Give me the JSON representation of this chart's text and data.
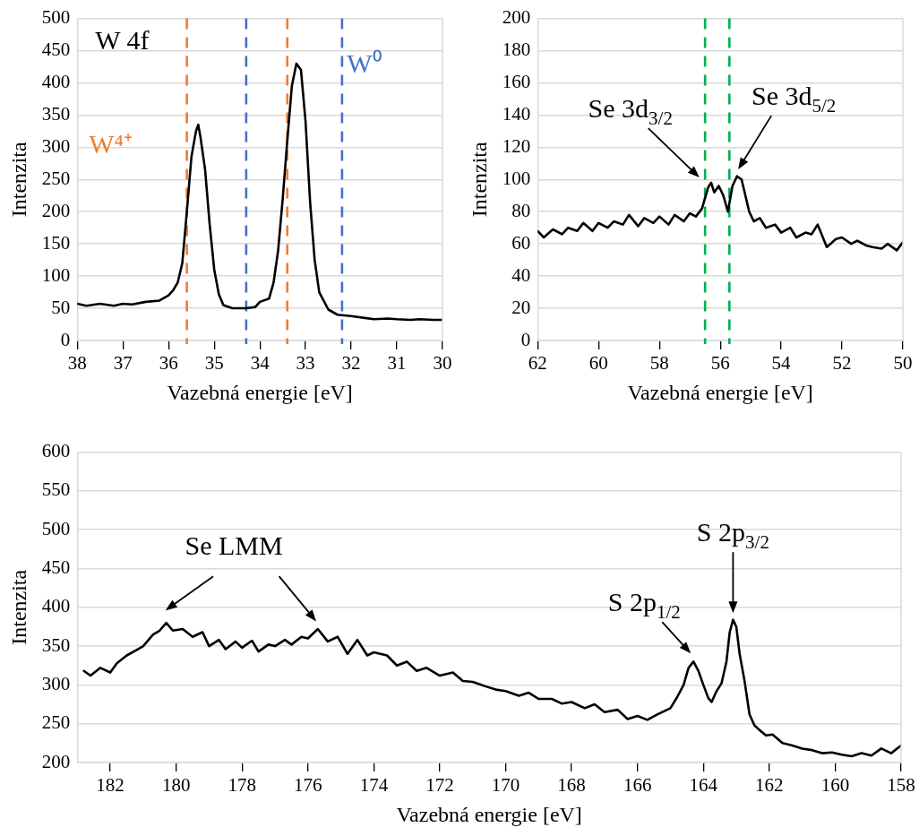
{
  "chart_data": [
    {
      "type": "line",
      "xlabel": "Vazebná energie [eV]",
      "ylabel": "Intenzita",
      "xlim": [
        38,
        30
      ],
      "ylim": [
        0,
        500
      ],
      "xticks": [
        38,
        37,
        36,
        35,
        34,
        33,
        32,
        31,
        30
      ],
      "yticks": [
        0,
        50,
        100,
        150,
        200,
        250,
        300,
        350,
        400,
        450,
        500
      ],
      "grid": "y",
      "legend": false,
      "marker": "none",
      "line_style": "solid",
      "annotations": [
        "W 4f"
      ],
      "ref_lines": [
        {
          "axis": "x",
          "value": 35.6,
          "label": "W⁴⁺",
          "color": "#ed7d31",
          "line_style": "dashed"
        },
        {
          "axis": "x",
          "value": 34.3,
          "label": null,
          "color": "#4472c4",
          "line_style": "dashed"
        },
        {
          "axis": "x",
          "value": 33.4,
          "label": null,
          "color": "#ed7d31",
          "line_style": "dashed"
        },
        {
          "axis": "x",
          "value": 32.2,
          "label": "W⁰",
          "color": "#4472c4",
          "line_style": "dashed"
        }
      ],
      "x": [
        38,
        37.8,
        37.5,
        37.2,
        37,
        36.8,
        36.5,
        36.2,
        36,
        35.9,
        35.8,
        35.7,
        35.6,
        35.5,
        35.4,
        35.35,
        35.3,
        35.2,
        35.1,
        35.0,
        34.9,
        34.8,
        34.6,
        34.3,
        34.1,
        34.0,
        33.8,
        33.7,
        33.6,
        33.5,
        33.4,
        33.3,
        33.2,
        33.1,
        33.0,
        32.9,
        32.8,
        32.7,
        32.5,
        32.3,
        32,
        31.7,
        31.5,
        31.2,
        31,
        30.7,
        30.5,
        30.2,
        30
      ],
      "series": [
        {
          "color": "#000000",
          "values": [
            57,
            54,
            57,
            54,
            57,
            56,
            60,
            62,
            70,
            78,
            90,
            120,
            200,
            285,
            325,
            335,
            315,
            265,
            180,
            110,
            72,
            55,
            50,
            50,
            52,
            60,
            65,
            90,
            140,
            220,
            310,
            395,
            430,
            420,
            340,
            215,
            125,
            75,
            48,
            40,
            38,
            35,
            33,
            34,
            33,
            32,
            33,
            32,
            32
          ]
        }
      ]
    },
    {
      "type": "line",
      "xlabel": "Vazebná energie [eV]",
      "ylabel": "Intenzita",
      "xlim": [
        62,
        50
      ],
      "ylim": [
        0,
        200
      ],
      "xticks": [
        62,
        60,
        58,
        56,
        54,
        52,
        50
      ],
      "yticks": [
        0,
        20,
        40,
        60,
        80,
        100,
        120,
        140,
        160,
        180,
        200
      ],
      "grid": "y",
      "legend": false,
      "marker": "none",
      "line_style": "solid",
      "annotations": [
        {
          "text": "Se 3d$_{3/2}$",
          "x": 56.6,
          "y": 99
        },
        {
          "text": "Se 3d$_{5/2}$",
          "x": 55.5,
          "y": 104
        }
      ],
      "ref_lines": [
        {
          "axis": "x",
          "value": 56.5,
          "label": null,
          "color": "#00b050",
          "line_style": "dashed"
        },
        {
          "axis": "x",
          "value": 55.7,
          "label": null,
          "color": "#00b050",
          "line_style": "dashed"
        }
      ],
      "x": [
        62,
        61.8,
        61.5,
        61.2,
        61,
        60.7,
        60.5,
        60.2,
        60,
        59.7,
        59.5,
        59.2,
        59,
        58.7,
        58.5,
        58.2,
        58,
        57.7,
        57.5,
        57.2,
        57,
        56.8,
        56.6,
        56.4,
        56.3,
        56.2,
        56.05,
        55.9,
        55.75,
        55.6,
        55.45,
        55.3,
        55.15,
        55.05,
        54.9,
        54.7,
        54.5,
        54.2,
        54,
        53.7,
        53.5,
        53.2,
        53,
        52.8,
        52.5,
        52.2,
        52,
        51.7,
        51.5,
        51.2,
        51,
        50.7,
        50.5,
        50.2,
        50
      ],
      "series": [
        {
          "color": "#000000",
          "values": [
            68,
            64,
            69,
            66,
            70,
            68,
            73,
            68,
            73,
            70,
            74,
            72,
            78,
            71,
            76,
            73,
            77,
            72,
            78,
            74,
            79,
            77,
            82,
            95,
            98,
            92,
            96,
            90,
            80,
            96,
            102,
            100,
            88,
            80,
            74,
            76,
            70,
            72,
            67,
            70,
            64,
            67,
            66,
            72,
            58,
            63,
            64,
            60,
            62,
            59,
            58,
            57,
            60,
            56,
            61
          ]
        }
      ]
    },
    {
      "type": "line",
      "xlabel": "Vazebná energie [eV]",
      "ylabel": "Intenzita",
      "xlim": [
        183,
        158
      ],
      "ylim": [
        200,
        600
      ],
      "xticks": [
        182,
        180,
        178,
        176,
        174,
        172,
        170,
        168,
        166,
        164,
        162,
        160,
        158
      ],
      "yticks": [
        200,
        250,
        300,
        350,
        400,
        450,
        500,
        550,
        600
      ],
      "grid": "y",
      "legend": false,
      "marker": "none",
      "line_style": "solid",
      "annotations": [
        "Se LMM",
        {
          "text": "S 2p$_{1/2}$",
          "x": 164.3,
          "y": 336
        },
        {
          "text": "S 2p$_{3/2}$",
          "x": 163.1,
          "y": 388
        }
      ],
      "x": [
        182.8,
        182.6,
        182.3,
        182,
        181.8,
        181.5,
        181.2,
        181,
        180.7,
        180.5,
        180.3,
        180.1,
        179.8,
        179.5,
        179.2,
        179,
        178.7,
        178.5,
        178.2,
        178,
        177.7,
        177.5,
        177.2,
        177,
        176.7,
        176.5,
        176.2,
        176,
        175.7,
        175.4,
        175.1,
        174.8,
        174.5,
        174.2,
        174,
        173.6,
        173.3,
        173,
        172.7,
        172.4,
        172,
        171.6,
        171.3,
        171,
        170.6,
        170.3,
        170,
        169.6,
        169.3,
        169,
        168.6,
        168.3,
        168,
        167.6,
        167.3,
        167,
        166.6,
        166.3,
        166,
        165.7,
        165.4,
        165.2,
        165,
        164.8,
        164.6,
        164.45,
        164.3,
        164.15,
        164,
        163.85,
        163.75,
        163.6,
        163.45,
        163.3,
        163.2,
        163.1,
        163.0,
        162.9,
        162.75,
        162.6,
        162.45,
        162.3,
        162.1,
        161.9,
        161.6,
        161.3,
        161,
        160.7,
        160.4,
        160.1,
        159.8,
        159.5,
        159.2,
        158.9,
        158.6,
        158.3,
        158
      ],
      "series": [
        {
          "color": "#000000",
          "values": [
            318,
            312,
            322,
            316,
            328,
            338,
            345,
            350,
            365,
            370,
            380,
            370,
            372,
            362,
            368,
            350,
            358,
            346,
            356,
            348,
            357,
            343,
            352,
            350,
            358,
            352,
            362,
            360,
            372,
            356,
            362,
            340,
            358,
            338,
            342,
            338,
            325,
            330,
            318,
            322,
            312,
            316,
            305,
            304,
            298,
            294,
            292,
            286,
            290,
            282,
            282,
            276,
            278,
            270,
            275,
            265,
            268,
            256,
            260,
            255,
            262,
            266,
            270,
            284,
            300,
            322,
            330,
            318,
            300,
            283,
            278,
            292,
            302,
            330,
            368,
            384,
            375,
            340,
            305,
            262,
            248,
            242,
            235,
            236,
            225,
            222,
            218,
            216,
            212,
            213,
            210,
            208,
            212,
            209,
            218,
            212,
            222
          ]
        }
      ]
    }
  ]
}
